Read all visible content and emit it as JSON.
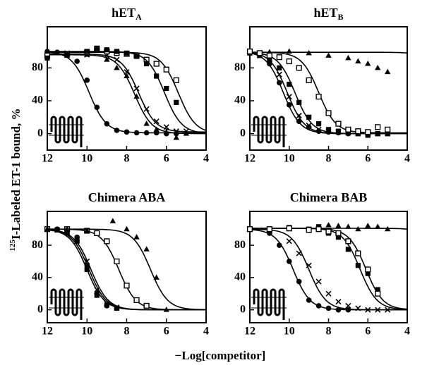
{
  "chart_data": [
    {
      "type": "scatter",
      "title": "hET",
      "title_subscript": "A",
      "xlim": [
        12,
        4
      ],
      "xticks": [
        12,
        10,
        8,
        6,
        4
      ],
      "ylim": [
        -20,
        130
      ],
      "yticks": [
        0,
        40,
        80
      ],
      "series": [
        {
          "marker": "circle",
          "color": "#000000",
          "x": [
            12,
            11.5,
            11,
            10.5,
            10,
            9.5,
            9,
            8.5,
            8,
            7.5,
            7,
            6.5,
            6,
            5.5
          ],
          "values": [
            100,
            99,
            96,
            88,
            65,
            32,
            12,
            4,
            2,
            1,
            1,
            1,
            0,
            0
          ],
          "fit_top": 100,
          "fit_bottom": 1,
          "fit_x50": 9.9
        },
        {
          "marker": "cross",
          "color": "#000000",
          "x": [
            12,
            11,
            10,
            9,
            8.5,
            8,
            7.5,
            7,
            6.5,
            6,
            5.5,
            5
          ],
          "values": [
            97,
            98,
            96,
            95,
            90,
            75,
            55,
            30,
            15,
            8,
            3,
            3
          ],
          "fit_top": 97,
          "fit_bottom": 2,
          "fit_x50": 7.4
        },
        {
          "marker": "triangle",
          "color": "#000000",
          "x": [
            12,
            11,
            10,
            9,
            8.5,
            8,
            7.5,
            7,
            6.5,
            6,
            5.5,
            5
          ],
          "values": [
            96,
            95,
            96,
            90,
            80,
            70,
            45,
            12,
            5,
            2,
            -5,
            0
          ],
          "fit_top": 96,
          "fit_bottom": 0,
          "fit_x50": 7.6
        },
        {
          "marker": "open-square",
          "color": "#000000",
          "x": [
            12,
            11,
            10,
            9.5,
            9,
            8.5,
            8,
            7.5,
            7,
            6.5,
            6,
            5.5
          ],
          "values": [
            95,
            97,
            99,
            103,
            100,
            98,
            97,
            95,
            90,
            85,
            78,
            65
          ],
          "fit_top": 99,
          "fit_bottom": 0,
          "fit_x50": 5.4
        },
        {
          "marker": "square",
          "color": "#000000",
          "x": [
            12,
            11,
            10,
            9.5,
            9,
            8.5,
            8,
            7.5,
            7,
            6.5,
            6,
            5.5
          ],
          "values": [
            92,
            96,
            100,
            104,
            102,
            100,
            98,
            94,
            85,
            70,
            55,
            38
          ],
          "fit_top": 100,
          "fit_bottom": 0,
          "fit_x50": 6.1
        }
      ]
    },
    {
      "type": "scatter",
      "title": "hET",
      "title_subscript": "B",
      "xlim": [
        12,
        4
      ],
      "xticks": [
        12,
        10,
        8,
        6,
        4
      ],
      "ylim": [
        -20,
        130
      ],
      "yticks": [
        0,
        40,
        80
      ],
      "series": [
        {
          "marker": "triangle",
          "color": "#000000",
          "x": [
            12,
            11,
            10,
            9,
            8,
            7,
            6.5,
            6,
            5.5,
            5
          ],
          "values": [
            100,
            99,
            100,
            98,
            95,
            92,
            88,
            85,
            80,
            75
          ],
          "fit_top": 99,
          "fit_bottom": 0,
          "fit_x50": 2
        },
        {
          "marker": "circle",
          "color": "#000000",
          "x": [
            12,
            11.5,
            11,
            10.5,
            10,
            9.5,
            9,
            8.5,
            8,
            7.5,
            7,
            6.5,
            6,
            5.5,
            5
          ],
          "values": [
            100,
            96,
            85,
            62,
            35,
            15,
            8,
            3,
            2,
            1,
            0,
            0,
            0,
            0,
            0
          ],
          "fit_top": 100,
          "fit_bottom": 0,
          "fit_x50": 10.3
        },
        {
          "marker": "cross",
          "color": "#000000",
          "x": [
            12,
            11.5,
            11,
            10.5,
            10,
            9.5,
            9,
            8.5,
            8,
            7.5,
            7,
            6.5,
            6,
            5.5,
            5
          ],
          "values": [
            100,
            95,
            90,
            72,
            45,
            22,
            10,
            5,
            3,
            2,
            1,
            0,
            0,
            0,
            0
          ],
          "fit_top": 100,
          "fit_bottom": 0,
          "fit_x50": 10.1
        },
        {
          "marker": "square",
          "color": "#000000",
          "x": [
            12,
            11.5,
            11,
            10.5,
            10,
            9.5,
            9,
            8.5,
            8,
            7.5,
            7,
            6.5,
            6,
            5.5,
            5
          ],
          "values": [
            98,
            95,
            90,
            80,
            60,
            38,
            20,
            12,
            5,
            3,
            2,
            0,
            -2,
            0,
            0
          ],
          "fit_top": 99,
          "fit_bottom": 0,
          "fit_x50": 9.7
        },
        {
          "marker": "open-square",
          "color": "#000000",
          "x": [
            12,
            11.5,
            11,
            10.5,
            10,
            9.5,
            9,
            8.5,
            8,
            7.5,
            7,
            6.5,
            6,
            5.5,
            5
          ],
          "values": [
            100,
            98,
            95,
            93,
            88,
            80,
            65,
            45,
            25,
            12,
            5,
            3,
            2,
            8,
            5
          ],
          "fit_top": 99,
          "fit_bottom": 1,
          "fit_x50": 8.5
        }
      ]
    },
    {
      "type": "scatter",
      "title": "Chimera ABA",
      "xlim": [
        12,
        4
      ],
      "xticks": [
        12,
        10,
        8,
        6,
        4
      ],
      "ylim": [
        -16,
        122
      ],
      "yticks": [
        0,
        40,
        80
      ],
      "series": [
        {
          "marker": "circle",
          "color": "#000000",
          "x": [
            12,
            11.5,
            11,
            10.5,
            10,
            9.5,
            9,
            8.5
          ],
          "values": [
            100,
            100,
            98,
            90,
            55,
            20,
            5,
            2
          ],
          "fit_top": 100,
          "fit_bottom": 0,
          "fit_x50": 9.9
        },
        {
          "marker": "cross",
          "color": "#000000",
          "x": [
            12,
            11.5,
            11,
            10.5,
            10,
            9.5,
            9,
            8.5
          ],
          "values": [
            100,
            99,
            97,
            88,
            60,
            25,
            8,
            3
          ],
          "fit_top": 100,
          "fit_bottom": 0,
          "fit_x50": 9.8
        },
        {
          "marker": "square",
          "color": "#000000",
          "x": [
            12,
            11.5,
            11,
            10.5,
            10,
            9.5,
            9,
            8.5
          ],
          "values": [
            100,
            99,
            95,
            85,
            50,
            18,
            6,
            2
          ],
          "fit_top": 100,
          "fit_bottom": 0,
          "fit_x50": 10
        },
        {
          "marker": "open-square",
          "color": "#000000",
          "x": [
            12,
            11,
            10,
            9.5,
            9,
            8.5,
            8,
            7.5,
            7
          ],
          "values": [
            100,
            100,
            98,
            95,
            85,
            60,
            30,
            12,
            5
          ],
          "fit_top": 100,
          "fit_bottom": 0,
          "fit_x50": 8.4
        },
        {
          "marker": "triangle",
          "color": "#000000",
          "x": [
            12,
            11,
            10,
            8.7,
            8,
            7.5,
            7,
            6.5,
            6
          ],
          "values": [
            100,
            100,
            98,
            110,
            100,
            90,
            75,
            40,
            0
          ],
          "fit_top": 100,
          "fit_bottom": 0,
          "fit_x50": 6.8
        }
      ]
    },
    {
      "type": "scatter",
      "title": "Chimera BAB",
      "xlim": [
        12,
        4
      ],
      "xticks": [
        12,
        10,
        8,
        6,
        4
      ],
      "ylim": [
        -16,
        122
      ],
      "yticks": [
        0,
        40,
        80
      ],
      "series": [
        {
          "marker": "triangle",
          "color": "#000000",
          "x": [
            12,
            11,
            10,
            9,
            8.5,
            8,
            7.5,
            7,
            6.5,
            6,
            5.5,
            5
          ],
          "values": [
            100,
            99,
            100,
            98,
            102,
            105,
            104,
            103,
            100,
            104,
            103,
            100
          ],
          "fit_top": 101,
          "fit_bottom": 0,
          "fit_x50": 2
        },
        {
          "marker": "circle",
          "color": "#000000",
          "x": [
            12,
            11,
            10.5,
            10,
            9.5,
            9,
            8.5,
            8,
            7.5,
            7
          ],
          "values": [
            100,
            95,
            80,
            60,
            35,
            12,
            5,
            2,
            0,
            0
          ],
          "fit_top": 100,
          "fit_bottom": 0,
          "fit_x50": 9.8
        },
        {
          "marker": "cross",
          "color": "#000000",
          "x": [
            12,
            11,
            10,
            9.5,
            9,
            8.5,
            8,
            7.5,
            7,
            6.5,
            6,
            5.5,
            5
          ],
          "values": [
            100,
            98,
            85,
            70,
            55,
            35,
            20,
            10,
            5,
            2,
            0,
            0,
            0
          ],
          "fit_top": 100,
          "fit_bottom": 0,
          "fit_x50": 9
        },
        {
          "marker": "square",
          "color": "#000000",
          "x": [
            12,
            11,
            10,
            9,
            8.5,
            8,
            7.5,
            7,
            6.5,
            6,
            5.5
          ],
          "values": [
            100,
            100,
            102,
            100,
            103,
            95,
            90,
            75,
            55,
            45,
            25
          ],
          "fit_top": 101,
          "fit_bottom": 0,
          "fit_x50": 6.4
        },
        {
          "marker": "open-square",
          "color": "#000000",
          "x": [
            12,
            11,
            10,
            9,
            8.5,
            8,
            7.5,
            7,
            6.5,
            6,
            5.5
          ],
          "values": [
            100,
            100,
            101,
            99,
            100,
            97,
            95,
            85,
            70,
            50,
            20
          ],
          "fit_top": 101,
          "fit_bottom": 0,
          "fit_x50": 6.1
        }
      ]
    }
  ],
  "y_label_sup": "125",
  "y_label": "I-Labeled ET-1 bound, %",
  "x_label": "−Log[competitor]"
}
